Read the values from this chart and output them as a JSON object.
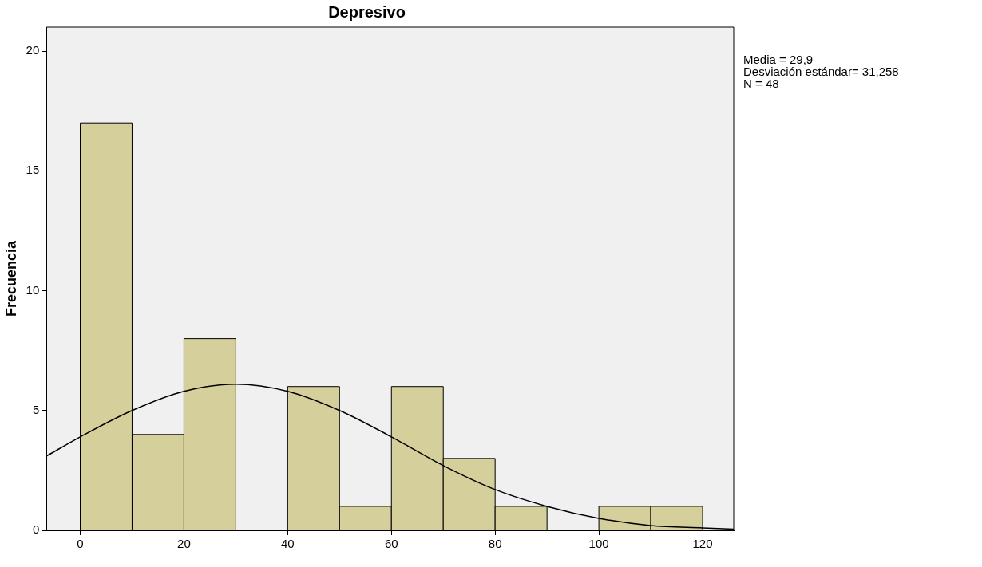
{
  "chart_data": {
    "type": "histogram",
    "title": "Depresivo",
    "ylabel": "Frecuencia",
    "bins": [
      0,
      10,
      20,
      30,
      40,
      50,
      60,
      70,
      80,
      90,
      100,
      110,
      120
    ],
    "values": [
      17,
      4,
      8,
      0,
      6,
      1,
      6,
      3,
      1,
      0,
      1,
      1
    ],
    "color": "#d4cf9b",
    "series": [
      {
        "type": "line",
        "color": "#000000",
        "x": [
          -6.5,
          0,
          10,
          20,
          30,
          40,
          50,
          60,
          70,
          80,
          90,
          100,
          110,
          120,
          126
        ],
        "values": [
          3.1,
          3.9,
          5.0,
          5.8,
          6.1,
          5.8,
          5.0,
          3.9,
          2.7,
          1.7,
          1.0,
          0.5,
          0.2,
          0.1,
          0.05
        ]
      }
    ],
    "xlim": [
      -6.5,
      126
    ],
    "xticks": [
      0,
      20,
      40,
      60,
      80,
      100,
      120
    ],
    "ylim": [
      0,
      21
    ],
    "yticks": [
      0,
      5,
      10,
      15,
      20
    ],
    "grid": false,
    "legend": false,
    "annotations": [
      "Media = 29,9",
      "Desviación estándar= 31,258",
      "N = 48"
    ]
  }
}
